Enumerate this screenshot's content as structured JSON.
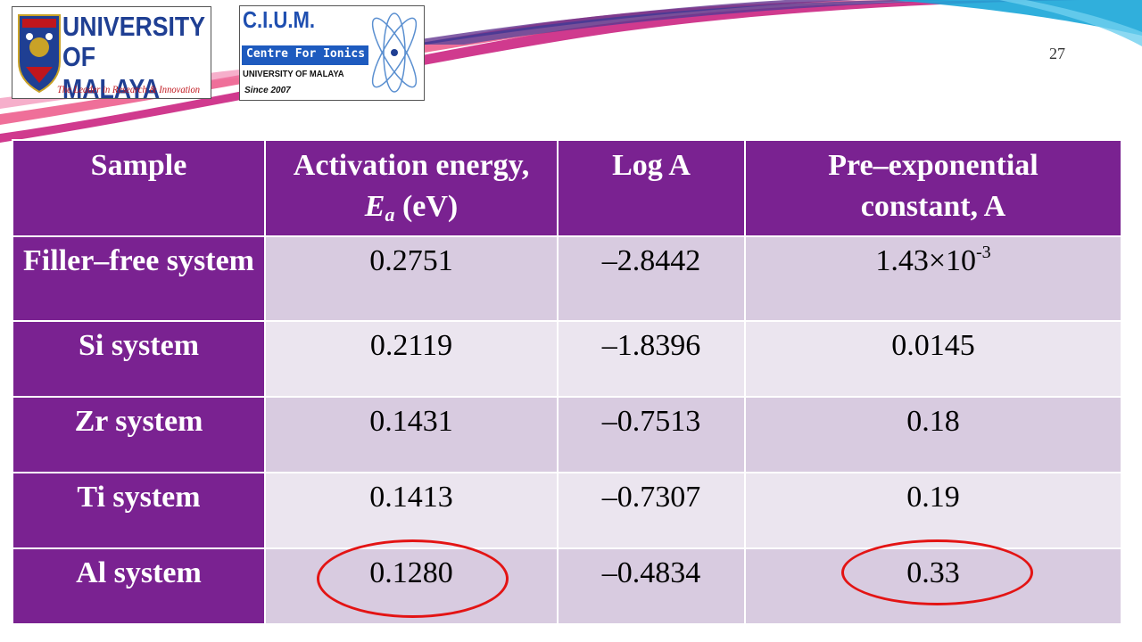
{
  "slide": {
    "number": "27"
  },
  "logos": {
    "university": {
      "line1": "UNIVERSITY",
      "line2": "OF MALAYA",
      "tagline": "The Leader in Research & Innovation"
    },
    "cium": {
      "title": "C.I.U.M.",
      "subtitle": "Centre For Ionics",
      "university": "UNIVERSITY OF MALAYA",
      "since": "Since 2007"
    }
  },
  "table": {
    "headers": {
      "sample": "Sample",
      "activation_prefix": "Activation energy,",
      "activation_symbol": "E",
      "activation_subscript": "a",
      "activation_unit": " (eV)",
      "loga": "Log A",
      "preexp_line1": "Pre–exponential",
      "preexp_line2": "constant, A"
    },
    "rows": [
      {
        "sample": "Filler–free system",
        "ea": "0.2751",
        "loga": "–2.8442",
        "a_base": "1.43×10",
        "a_exp": "-3"
      },
      {
        "sample": "Si system",
        "ea": "0.2119",
        "loga": "–1.8396",
        "a": "0.0145"
      },
      {
        "sample": "Zr system",
        "ea": "0.1431",
        "loga": "–0.7513",
        "a": "0.18"
      },
      {
        "sample": "Ti system",
        "ea": "0.1413",
        "loga": "–0.7307",
        "a": "0.19"
      },
      {
        "sample": "Al system",
        "ea": "0.1280",
        "loga": "–0.4834",
        "a": "0.33"
      }
    ]
  },
  "colors": {
    "header": "#7a2291",
    "row_odd": "#d8cbe0",
    "row_even": "#ebe5ef",
    "highlight": "#e31414"
  }
}
